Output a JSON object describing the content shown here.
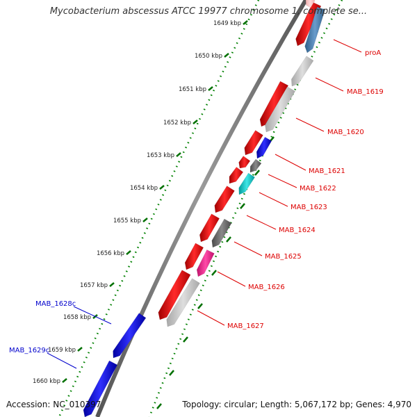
{
  "title": "Mycobacterium abscessus ATCC 19977 chromosome 1, complete se...",
  "footer": {
    "accession": "Accession: NC_010397",
    "summary": "Topology: circular; Length: 5,067,172 bp; Genes: 4,970"
  },
  "colors": {
    "cds_red": "#ff0000",
    "gene_gray": "#c0c0c0",
    "dark_gray": "#6e6e6e",
    "steel_blue": "#4682b4",
    "blue": "#0000ee",
    "cyan": "#00c8c8",
    "magenta": "#ff1493",
    "light_pink": "#ffc8c8",
    "tick_green": "#008000",
    "label_red": "#dd0000",
    "label_blue": "#0000cc"
  },
  "kbp_ticks": [
    {
      "label": "1649 kbp"
    },
    {
      "label": "1650 kbp"
    },
    {
      "label": "1651 kbp"
    },
    {
      "label": "1652 kbp"
    },
    {
      "label": "1653 kbp"
    },
    {
      "label": "1654 kbp"
    },
    {
      "label": "1655 kbp"
    },
    {
      "label": "1656 kbp"
    },
    {
      "label": "1657 kbp"
    },
    {
      "label": "1658 kbp"
    },
    {
      "label": "1659 kbp"
    },
    {
      "label": "1660 kbp"
    }
  ],
  "gene_labels": [
    {
      "text": "proA",
      "strand": "forward"
    },
    {
      "text": "MAB_1619",
      "strand": "forward"
    },
    {
      "text": "MAB_1620",
      "strand": "forward"
    },
    {
      "text": "MAB_1621",
      "strand": "forward"
    },
    {
      "text": "MAB_1622",
      "strand": "forward"
    },
    {
      "text": "MAB_1623",
      "strand": "forward"
    },
    {
      "text": "MAB_1624",
      "strand": "forward"
    },
    {
      "text": "MAB_1625",
      "strand": "forward"
    },
    {
      "text": "MAB_1626",
      "strand": "forward"
    },
    {
      "text": "MAB_1627",
      "strand": "forward"
    },
    {
      "text": "MAB_1628c",
      "strand": "reverse"
    },
    {
      "text": "MAB_1629c",
      "strand": "reverse"
    }
  ]
}
